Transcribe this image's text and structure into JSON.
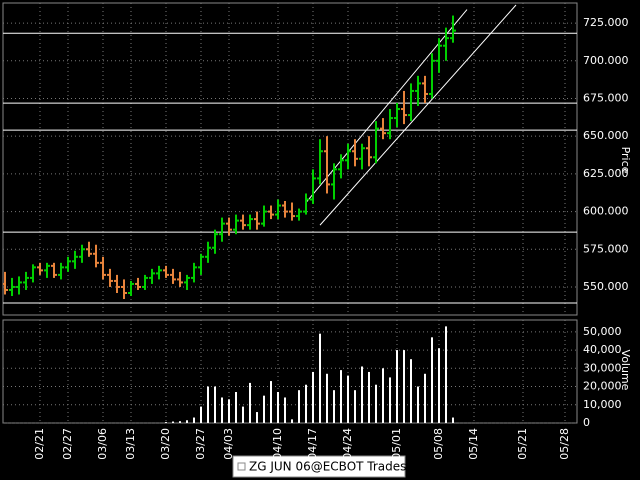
{
  "chart_data": {
    "type": "ohlc",
    "legend": "ZG JUN 06@ECBOT Trades",
    "y_label": "Price",
    "categories": [
      null,
      null,
      null,
      null,
      null,
      "02/21",
      null,
      null,
      null,
      "02/27",
      null,
      null,
      null,
      null,
      "03/06",
      null,
      null,
      null,
      "03/13",
      null,
      null,
      null,
      null,
      "03/20",
      null,
      null,
      null,
      null,
      "03/27",
      null,
      null,
      null,
      "04/03",
      null,
      null,
      null,
      null,
      null,
      null,
      "04/10",
      null,
      null,
      null,
      null,
      "04/17",
      null,
      null,
      null,
      null,
      "04/24",
      null,
      null,
      null,
      null,
      null,
      null,
      "05/01",
      null,
      null,
      null,
      null,
      null,
      "05/08",
      null,
      null,
      null,
      null,
      "05/14",
      null,
      null,
      null,
      null,
      null,
      null,
      "05/21",
      null,
      null,
      null,
      null,
      null,
      "05/28",
      null
    ],
    "open": [
      552,
      548,
      550,
      553,
      556,
      563,
      561,
      564,
      558,
      563,
      567,
      570,
      575,
      572,
      566,
      558,
      554,
      550,
      546,
      552,
      550,
      556,
      559,
      561,
      558,
      555,
      553,
      556,
      563,
      570,
      576,
      585,
      592,
      588,
      594,
      591,
      595,
      592,
      600,
      598,
      604,
      600,
      597,
      600,
      608,
      622,
      640,
      618,
      628,
      634,
      640,
      635,
      642,
      636,
      655,
      652,
      662,
      668,
      664,
      680,
      685,
      678,
      700,
      710,
      715,
      null,
      null,
      null,
      null,
      null,
      null,
      null,
      null,
      null,
      null,
      null,
      null,
      null,
      null,
      null,
      null,
      null
    ],
    "high": [
      560,
      556,
      557,
      560,
      565,
      566,
      566,
      566,
      566,
      570,
      574,
      578,
      580,
      578,
      570,
      562,
      558,
      555,
      554,
      556,
      558,
      562,
      564,
      564,
      562,
      560,
      558,
      566,
      572,
      580,
      588,
      596,
      596,
      598,
      598,
      598,
      600,
      604,
      604,
      608,
      607,
      606,
      602,
      612,
      628,
      648,
      650,
      632,
      638,
      645,
      648,
      645,
      650,
      660,
      662,
      668,
      672,
      680,
      685,
      690,
      690,
      705,
      715,
      722,
      730,
      null,
      null,
      null,
      null,
      null,
      null,
      null,
      null,
      null,
      null,
      null,
      null,
      null,
      null,
      null,
      null,
      null
    ],
    "low": [
      545,
      544,
      545,
      548,
      553,
      558,
      556,
      556,
      555,
      560,
      562,
      566,
      570,
      563,
      555,
      550,
      546,
      542,
      544,
      548,
      548,
      552,
      555,
      556,
      552,
      550,
      548,
      553,
      558,
      566,
      572,
      580,
      584,
      585,
      588,
      588,
      588,
      590,
      595,
      595,
      596,
      594,
      594,
      598,
      605,
      618,
      612,
      608,
      622,
      628,
      630,
      628,
      630,
      632,
      648,
      648,
      656,
      658,
      660,
      670,
      672,
      675,
      692,
      700,
      712,
      null,
      null,
      null,
      null,
      null,
      null,
      null,
      null,
      null,
      null,
      null,
      null,
      null,
      null,
      null,
      null,
      null
    ],
    "close": [
      548,
      550,
      553,
      556,
      563,
      561,
      564,
      558,
      563,
      567,
      570,
      575,
      572,
      566,
      558,
      554,
      550,
      546,
      552,
      550,
      556,
      559,
      561,
      558,
      555,
      553,
      556,
      563,
      570,
      576,
      585,
      592,
      588,
      594,
      591,
      595,
      592,
      600,
      598,
      604,
      600,
      597,
      600,
      608,
      622,
      640,
      618,
      628,
      634,
      640,
      635,
      642,
      636,
      655,
      652,
      662,
      668,
      664,
      680,
      685,
      678,
      700,
      710,
      715,
      720,
      null,
      null,
      null,
      null,
      null,
      null,
      null,
      null,
      null,
      null,
      null,
      null,
      null,
      null,
      null,
      null,
      null
    ],
    "up_color": "#00d000",
    "down_color": "#e8843c",
    "ylim": [
      531.4,
      737
    ],
    "yticks": [
      {
        "value": 550,
        "label": "550.000"
      },
      {
        "value": 575,
        "label": "575.000"
      },
      {
        "value": 600,
        "label": "600.000"
      },
      {
        "value": 625,
        "label": "625.000"
      },
      {
        "value": 650,
        "label": "650.000"
      },
      {
        "value": 675,
        "label": "675.000"
      },
      {
        "value": 700,
        "label": "700.000"
      },
      {
        "value": 725,
        "label": "725.000"
      }
    ],
    "hlines": [
      718.3,
      671.9,
      654,
      586.4,
      539.4
    ],
    "trendlines": [
      {
        "start": [
          43,
          606
        ],
        "end": [
          66,
          734
        ]
      },
      {
        "start": [
          45,
          591
        ],
        "end": [
          73,
          737
        ]
      }
    ],
    "volume": {
      "label": "Volume",
      "color": "#ffffff",
      "values": [
        0,
        0,
        0,
        0,
        0,
        0,
        0,
        0,
        0,
        0,
        0,
        0,
        0,
        0,
        0,
        0,
        0,
        0,
        0,
        0,
        0,
        0,
        0,
        500,
        800,
        1000,
        1500,
        3000,
        9000,
        20000,
        20000,
        14000,
        13000,
        17000,
        9000,
        22000,
        6000,
        15000,
        23000,
        17000,
        14000,
        2000,
        18000,
        21000,
        28000,
        49000,
        27000,
        18000,
        29000,
        26000,
        18000,
        31000,
        28000,
        21000,
        30000,
        25000,
        40000,
        40000,
        35000,
        20000,
        27000,
        47000,
        41000,
        53000,
        3000,
        null,
        null,
        null,
        null,
        null,
        null,
        null,
        null,
        null,
        null,
        null,
        null,
        null,
        null,
        null,
        null,
        null
      ],
      "ylim": [
        0,
        56500
      ],
      "yticks": [
        0,
        {
          "value": 10000,
          "label": "10,000"
        },
        {
          "value": 20000,
          "label": "20,000"
        },
        {
          "value": 30000,
          "label": "30,000"
        },
        {
          "value": 40000,
          "label": "40,000"
        },
        {
          "value": 50000,
          "label": "50,000"
        }
      ]
    }
  }
}
